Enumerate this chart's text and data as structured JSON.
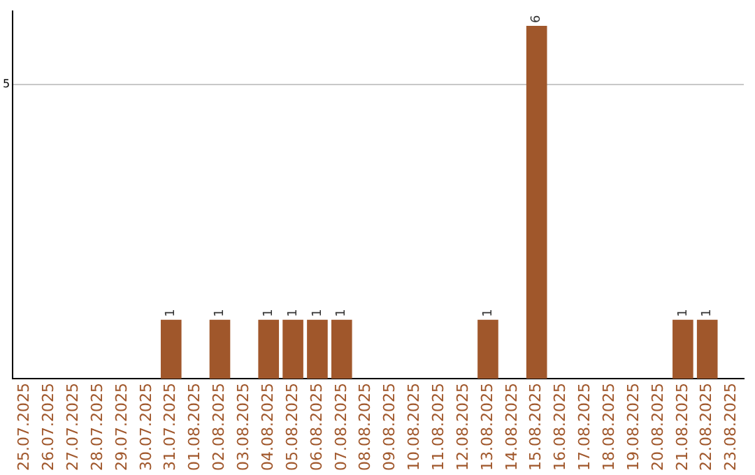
{
  "chart_data": {
    "type": "bar",
    "categories": [
      "25.07.2025",
      "26.07.2025",
      "27.07.2025",
      "28.07.2025",
      "29.07.2025",
      "30.07.2025",
      "31.07.2025",
      "01.08.2025",
      "02.08.2025",
      "03.08.2025",
      "04.08.2025",
      "05.08.2025",
      "06.08.2025",
      "07.08.2025",
      "08.08.2025",
      "09.08.2025",
      "10.08.2025",
      "11.08.2025",
      "12.08.2025",
      "13.08.2025",
      "14.08.2025",
      "15.08.2025",
      "16.08.2025",
      "17.08.2025",
      "18.08.2025",
      "19.08.2025",
      "20.08.2025",
      "21.08.2025",
      "22.08.2025",
      "23.08.2025"
    ],
    "values": [
      0,
      0,
      0,
      0,
      0,
      0,
      1,
      0,
      1,
      0,
      1,
      1,
      1,
      1,
      0,
      0,
      0,
      0,
      0,
      1,
      0,
      6,
      0,
      0,
      0,
      0,
      0,
      1,
      1,
      0
    ],
    "value_labels": [
      null,
      null,
      null,
      null,
      null,
      null,
      "1",
      null,
      "1",
      null,
      "1",
      "1",
      "1",
      "1",
      null,
      null,
      null,
      null,
      null,
      "1",
      null,
      "6",
      null,
      null,
      null,
      null,
      null,
      "1",
      "1",
      null
    ],
    "color": "#a0572b",
    "ylim": [
      0,
      6.25
    ],
    "yticks": [
      5
    ],
    "grid": "y",
    "legend": false
  }
}
